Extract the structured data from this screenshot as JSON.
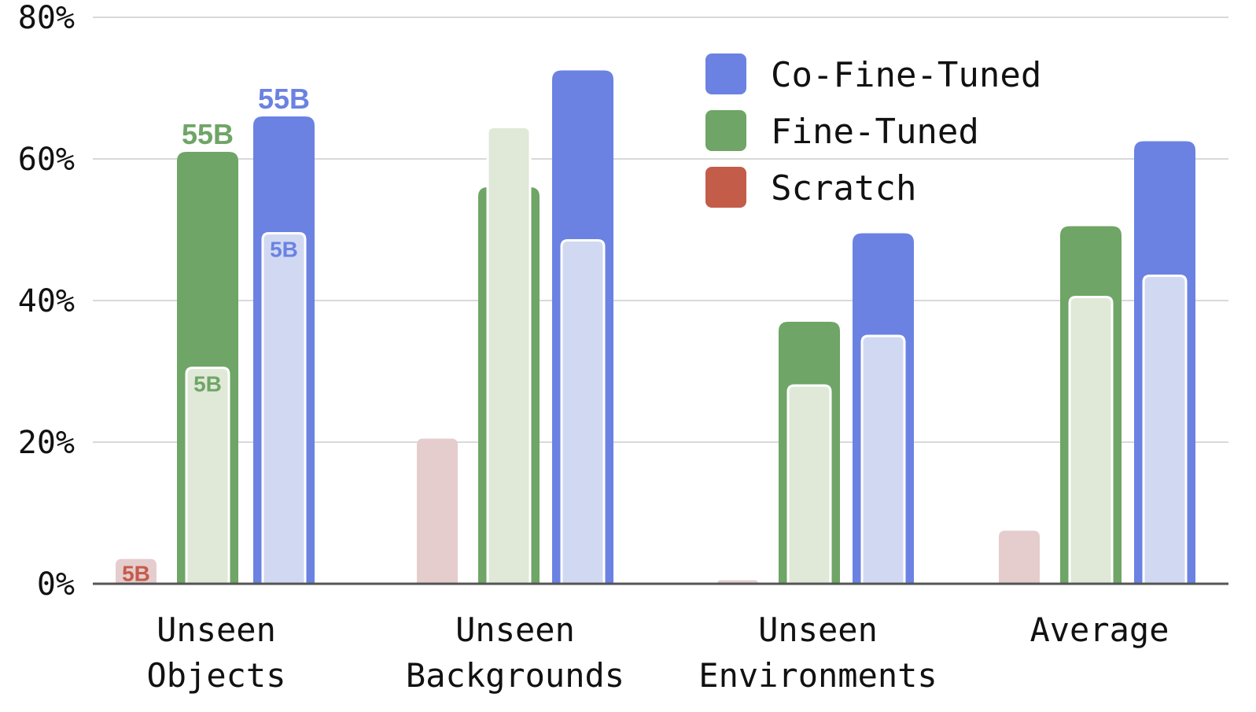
{
  "chart_data": {
    "type": "bar",
    "title": "",
    "xlabel": "",
    "ylabel": "",
    "ylim": [
      0,
      80
    ],
    "y_ticks": [
      "0%",
      "20%",
      "40%",
      "60%",
      "80%"
    ],
    "grid": true,
    "legend_position": "top-right",
    "categories": [
      [
        "Unseen",
        "Objects"
      ],
      [
        "Unseen",
        "Backgrounds"
      ],
      [
        "Unseen",
        "Environments"
      ],
      [
        "Average"
      ]
    ],
    "series": [
      {
        "name": "Scratch",
        "color": "#c45c4a",
        "light_color": "#e5cdcd",
        "values_55b": [
          null,
          null,
          null,
          null
        ],
        "values_5b": [
          3.5,
          20.5,
          0.5,
          7.5
        ]
      },
      {
        "name": "Fine-Tuned",
        "color": "#6fa566",
        "light_color": "#e0e9d8",
        "values_55b": [
          61,
          56,
          37,
          50.5
        ],
        "values_5b": [
          30.5,
          64.5,
          28,
          40.5
        ]
      },
      {
        "name": "Co-Fine-Tuned",
        "color": "#6b82e3",
        "light_color": "#d1d9f2",
        "values_55b": [
          66,
          72.5,
          49.5,
          62.5
        ],
        "values_5b": [
          49.5,
          48.5,
          35,
          43.5
        ]
      }
    ],
    "annotations": [
      {
        "text": "5B",
        "series": 0,
        "category": 0,
        "variant": "5b"
      },
      {
        "text": "55B",
        "series": 1,
        "category": 0,
        "variant": "55b"
      },
      {
        "text": "5B",
        "series": 1,
        "category": 0,
        "variant": "5b"
      },
      {
        "text": "55B",
        "series": 2,
        "category": 0,
        "variant": "55b"
      },
      {
        "text": "5B",
        "series": 2,
        "category": 0,
        "variant": "5b"
      }
    ]
  }
}
